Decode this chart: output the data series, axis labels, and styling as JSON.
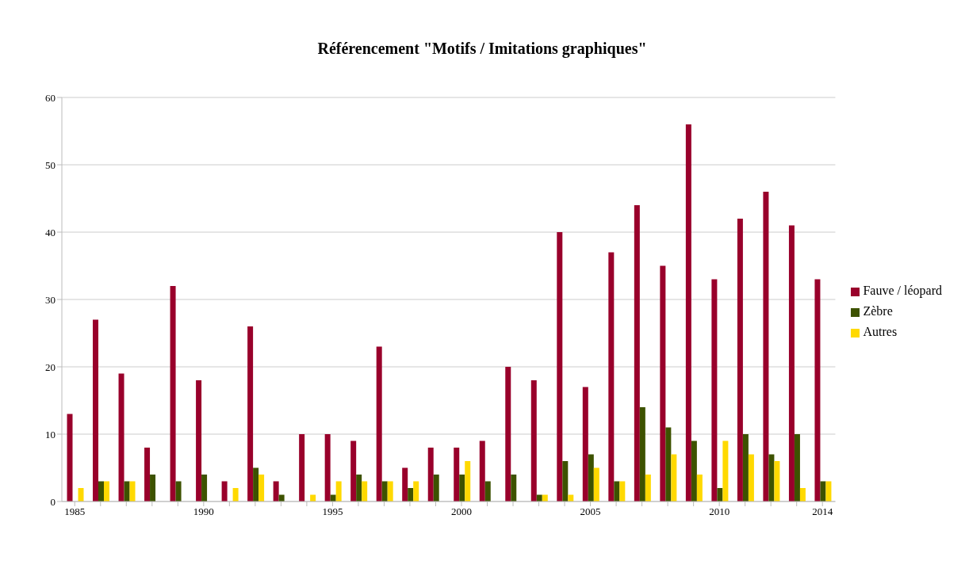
{
  "chart_data": {
    "type": "bar",
    "title": "Référencement \"Motifs / Imitations graphiques\"",
    "categories": [
      "1985",
      null,
      null,
      null,
      null,
      "1990",
      null,
      null,
      null,
      null,
      "1995",
      null,
      null,
      null,
      null,
      "2000",
      null,
      null,
      null,
      null,
      "2005",
      null,
      null,
      null,
      null,
      "2010",
      null,
      null,
      null,
      "2014"
    ],
    "series": [
      {
        "name": "Fauve / léopard",
        "color": "#99002b",
        "values": [
          13,
          27,
          19,
          8,
          32,
          18,
          3,
          26,
          3,
          10,
          10,
          9,
          23,
          5,
          8,
          8,
          9,
          20,
          18,
          40,
          17,
          37,
          44,
          35,
          56,
          33,
          42,
          46,
          41,
          33
        ]
      },
      {
        "name": "Zèbre",
        "color": "#3d5200",
        "values": [
          0,
          3,
          3,
          4,
          3,
          4,
          0,
          5,
          1,
          0,
          1,
          4,
          3,
          2,
          4,
          4,
          3,
          4,
          1,
          6,
          7,
          3,
          14,
          11,
          9,
          2,
          10,
          7,
          10,
          3
        ]
      },
      {
        "name": "Autres",
        "color": "#ffd900",
        "values": [
          2,
          3,
          3,
          0,
          0,
          0,
          2,
          4,
          0,
          1,
          3,
          3,
          3,
          3,
          0,
          6,
          0,
          0,
          1,
          1,
          5,
          3,
          4,
          7,
          4,
          9,
          7,
          6,
          2,
          3
        ]
      }
    ],
    "ylim": [
      0,
      60
    ],
    "yticks": [
      0,
      10,
      20,
      30,
      40,
      50,
      60
    ],
    "grid": "y",
    "legend": "right"
  }
}
